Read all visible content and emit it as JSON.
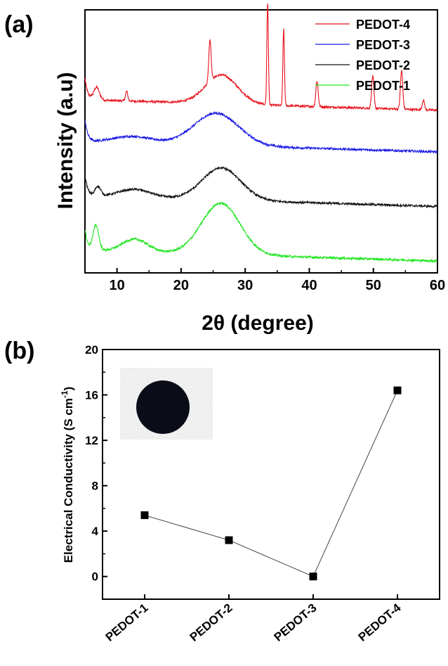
{
  "chart_data": [
    {
      "panel": "(a)",
      "type": "line",
      "title": "",
      "xlabel": "2θ (degree)",
      "ylabel": "Intensity (a.u)",
      "xlim": [
        5,
        60
      ],
      "xticks": [
        "10",
        "20",
        "30",
        "40",
        "50",
        "60"
      ],
      "grid": false,
      "legend_position": "top-right",
      "series": [
        {
          "name": "PEDOT-4",
          "color": "#e8121b",
          "offset": 5.4,
          "peaks": [
            [
              6.8,
              0.4
            ],
            [
              11.5,
              0.3
            ],
            [
              24.5,
              1.3
            ],
            [
              33.5,
              3.2
            ],
            [
              36.0,
              2.4
            ],
            [
              41.2,
              0.8
            ],
            [
              49.9,
              1.0
            ],
            [
              54.4,
              1.2
            ],
            [
              57.8,
              0.3
            ]
          ],
          "humps": [
            [
              26.3,
              0.9,
              2.5
            ]
          ]
        },
        {
          "name": "PEDOT-3",
          "color": "#1a1ae6",
          "offset": 4.1,
          "peaks": [],
          "humps": [
            [
              25.5,
              1.0,
              3.5
            ],
            [
              12.5,
              0.2,
              3.0
            ]
          ]
        },
        {
          "name": "PEDOT-2",
          "color": "#111111",
          "offset": 2.4,
          "peaks": [
            [
              7.0,
              0.3
            ]
          ],
          "humps": [
            [
              26.3,
              1.0,
              3.0
            ],
            [
              12.8,
              0.25,
              2.5
            ]
          ]
        },
        {
          "name": "PEDOT-1",
          "color": "#1fe61f",
          "offset": 0.7,
          "peaks": [
            [
              6.7,
              0.8
            ]
          ],
          "humps": [
            [
              26.2,
              1.6,
              3.0
            ],
            [
              12.8,
              0.4,
              2.0
            ]
          ]
        }
      ]
    },
    {
      "panel": "(b)",
      "type": "line",
      "title": "",
      "xlabel": "",
      "ylabel": "Electrical Conductivity (S cm",
      "ylabel_superscript": "-1",
      "ylabel_close": ")",
      "categories": [
        "PEDOT-1",
        "PEDOT-2",
        "PEDOT-3",
        "PEDOT-4"
      ],
      "values": [
        5.4,
        3.2,
        0.0,
        16.4
      ],
      "ylim": [
        -2,
        20
      ],
      "yticks": [
        "0",
        "4",
        "8",
        "12",
        "16",
        "20"
      ],
      "grid": false,
      "marker": "square",
      "inset_image": "photo of black circular PEDOT pellet on grey paper"
    }
  ]
}
